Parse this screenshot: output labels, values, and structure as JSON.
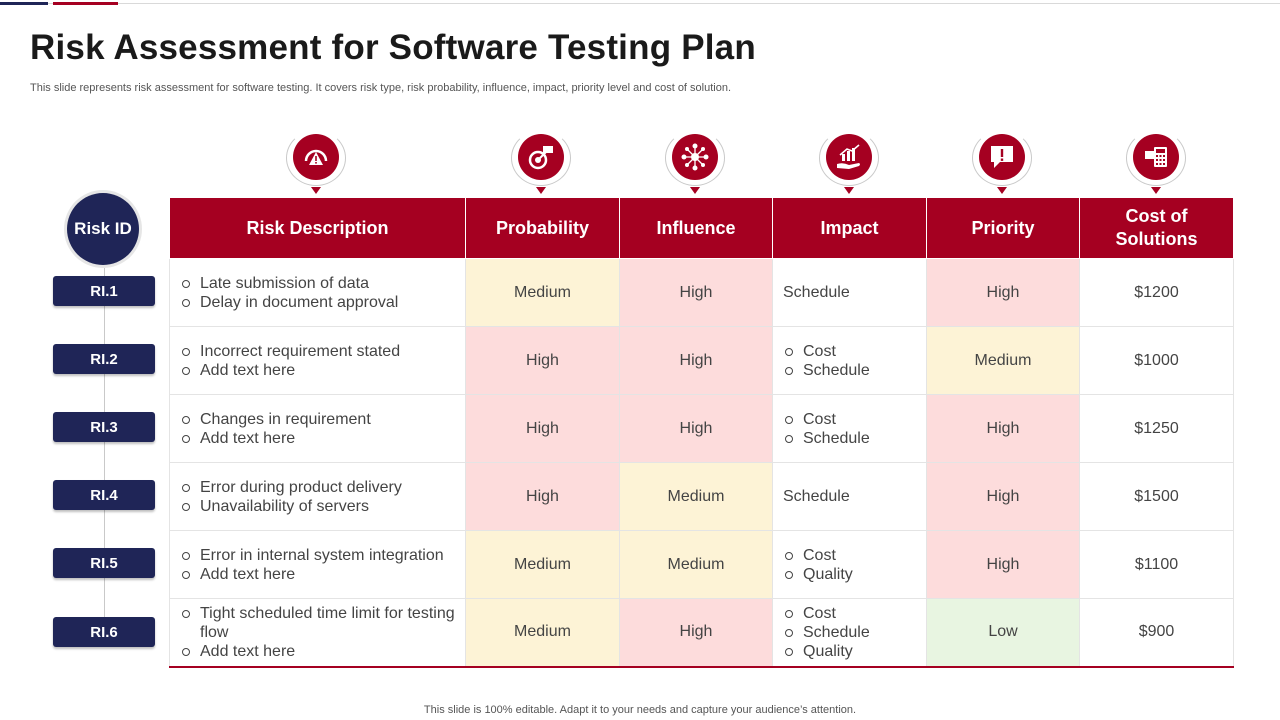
{
  "title": "Risk Assessment for Software Testing Plan",
  "subtitle": "This slide represents risk assessment for software testing. It covers risk type,  risk probability, influence, impact, priority level and cost of solution.",
  "footer": "This slide is 100% editable. Adapt it to your needs and capture your audience’s attention.",
  "risk_id_label": "Risk ID",
  "colors": {
    "primary": "#a50021",
    "navy": "#1f2557",
    "medium": "#fdf3d6",
    "high": "#fddcdc",
    "low": "#e8f5e1"
  },
  "headers": {
    "description": "Risk Description",
    "probability": "Probability",
    "influence": "Influence",
    "impact": "Impact",
    "priority": "Priority",
    "cost": "Cost of Solutions"
  },
  "icons": [
    "risk-gauge-icon",
    "probability-target-icon",
    "influence-network-icon",
    "impact-growth-hand-icon",
    "priority-alert-icon",
    "cost-calculator-icon"
  ],
  "rows": [
    {
      "id": "RI.1",
      "description": [
        "Late submission of data",
        "Delay in document approval"
      ],
      "probability": "Medium",
      "influence": "High",
      "impact": [
        "Schedule"
      ],
      "priority": "High",
      "cost": "$1200"
    },
    {
      "id": "RI.2",
      "description": [
        "Incorrect requirement stated",
        "Add text here"
      ],
      "probability": "High",
      "influence": "High",
      "impact": [
        "Cost",
        "Schedule"
      ],
      "priority": "Medium",
      "cost": "$1000"
    },
    {
      "id": "RI.3",
      "description": [
        "Changes in requirement",
        "Add text here"
      ],
      "probability": "High",
      "influence": "High",
      "impact": [
        "Cost",
        "Schedule"
      ],
      "priority": "High",
      "cost": "$1250"
    },
    {
      "id": "RI.4",
      "description": [
        "Error during product delivery",
        "Unavailability of servers"
      ],
      "probability": "High",
      "influence": "Medium",
      "impact": [
        "Schedule"
      ],
      "priority": "High",
      "cost": "$1500"
    },
    {
      "id": "RI.5",
      "description": [
        "Error in internal system integration",
        "Add text here"
      ],
      "probability": "Medium",
      "influence": "Medium",
      "impact": [
        "Cost",
        "Quality"
      ],
      "priority": "High",
      "cost": "$1100"
    },
    {
      "id": "RI.6",
      "description": [
        "Tight scheduled time limit for testing flow",
        "Add text here"
      ],
      "probability": "Medium",
      "influence": "High",
      "impact": [
        "Cost",
        "Schedule",
        "Quality"
      ],
      "priority": "Low",
      "cost": "$900"
    }
  ]
}
